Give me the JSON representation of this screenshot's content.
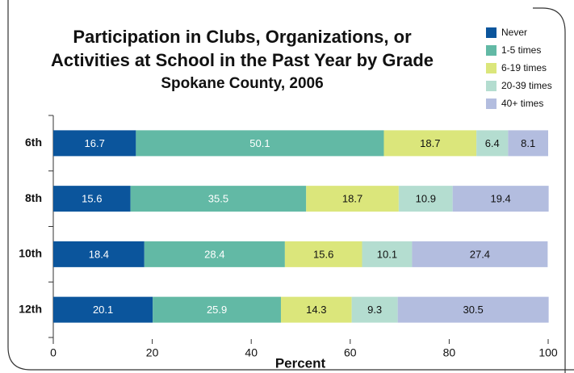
{
  "chart_data": {
    "type": "stacked-bar-horizontal",
    "title": [
      "Participation in Clubs, Organizations, or",
      "Activities at School in the Past Year by Grade"
    ],
    "subtitle": "Spokane County, 2006",
    "x_label": "Percent",
    "categories": [
      "6th",
      "8th",
      "10th",
      "12th"
    ],
    "series": [
      {
        "name": "Never",
        "color": "#0b559c",
        "values": [
          16.7,
          15.6,
          18.4,
          20.1
        ]
      },
      {
        "name": "1-5 times",
        "color": "#62b9a5",
        "values": [
          50.1,
          35.5,
          28.4,
          25.9
        ]
      },
      {
        "name": "6-19 times",
        "color": "#dbe67b",
        "values": [
          18.7,
          18.7,
          15.6,
          14.3
        ]
      },
      {
        "name": "20-39 times",
        "color": "#b4ddd0",
        "values": [
          6.4,
          10.9,
          10.1,
          9.3
        ]
      },
      {
        "name": "40+ times",
        "color": "#b3bddf",
        "values": [
          8.1,
          19.4,
          27.4,
          30.5
        ]
      }
    ],
    "xlim": [
      0,
      100
    ],
    "xticks": [
      0,
      20,
      40,
      60,
      80,
      100
    ],
    "legend": "top-right"
  }
}
